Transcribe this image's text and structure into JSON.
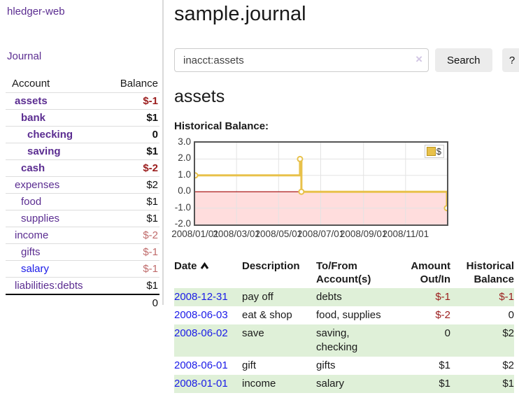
{
  "colors": {
    "link_purple": "#5b2d91",
    "link_blue": "#1a1ae8",
    "negative_strong": "#9b1d1d",
    "negative_soft": "#bf6a6a",
    "row_stripe_green": "#dff0d8",
    "chart_line": "#e8c14a",
    "chart_negative_region": "#ffdddd",
    "chart_zero_line": "#a00000",
    "chart_grid": "#e3e3e3"
  },
  "sidebar": {
    "app_title": "hledger-web",
    "journal_link": "Journal",
    "accounts": {
      "headers": {
        "account": "Account",
        "balance": "Balance"
      },
      "rows": [
        {
          "name": "assets",
          "balance": "$-1",
          "indent": 0,
          "bold": true,
          "link_color": "purple",
          "balance_color": "neg-strong"
        },
        {
          "name": "bank",
          "balance": "$1",
          "indent": 1,
          "bold": true,
          "link_color": "purple",
          "balance_color": "dark"
        },
        {
          "name": "checking",
          "balance": "0",
          "indent": 2,
          "bold": true,
          "link_color": "purple",
          "balance_color": "dark"
        },
        {
          "name": "saving",
          "balance": "$1",
          "indent": 2,
          "bold": true,
          "link_color": "purple",
          "balance_color": "dark"
        },
        {
          "name": "cash",
          "balance": "$-2",
          "indent": 1,
          "bold": true,
          "link_color": "purple",
          "balance_color": "neg-strong"
        },
        {
          "name": "expenses",
          "balance": "$2",
          "indent": 0,
          "bold": false,
          "link_color": "purple",
          "balance_color": "dark"
        },
        {
          "name": "food",
          "balance": "$1",
          "indent": 1,
          "bold": false,
          "link_color": "purple",
          "balance_color": "dark"
        },
        {
          "name": "supplies",
          "balance": "$1",
          "indent": 1,
          "bold": false,
          "link_color": "purple",
          "balance_color": "dark"
        },
        {
          "name": "income",
          "balance": "$-2",
          "indent": 0,
          "bold": false,
          "link_color": "purple",
          "balance_color": "neg-soft"
        },
        {
          "name": "gifts",
          "balance": "$-1",
          "indent": 1,
          "bold": false,
          "link_color": "purple",
          "balance_color": "neg-soft"
        },
        {
          "name": "salary",
          "balance": "$-1",
          "indent": 1,
          "bold": false,
          "link_color": "blue",
          "balance_color": "neg-soft"
        },
        {
          "name": "liabilities:debts",
          "balance": "$1",
          "indent": 0,
          "bold": false,
          "link_color": "purple",
          "balance_color": "dark"
        }
      ],
      "total": "0"
    }
  },
  "main": {
    "title": "sample.journal",
    "search": {
      "value": "inacct:assets",
      "clear_icon": "×",
      "search_button": "Search",
      "help_button": "?"
    },
    "heading": "assets",
    "chart_title": "Historical Balance:"
  },
  "chart_data": {
    "type": "line",
    "step": true,
    "title": "Historical Balance:",
    "legend": [
      {
        "name": "$",
        "color": "#e8c14a"
      }
    ],
    "legend_position": "top-right",
    "x_type": "date",
    "x_range_days": 365,
    "points": [
      {
        "date": "2008-01-01",
        "day": 0,
        "value": 1
      },
      {
        "date": "2008-06-01",
        "day": 152,
        "value": 2
      },
      {
        "date": "2008-06-03",
        "day": 154,
        "value": 0
      },
      {
        "date": "2008-12-31",
        "day": 365,
        "value": -1
      }
    ],
    "x_ticks": [
      {
        "label": "2008/01/01",
        "day": 0
      },
      {
        "label": "2008/03/01",
        "day": 60
      },
      {
        "label": "2008/05/01",
        "day": 121
      },
      {
        "label": "2008/07/01",
        "day": 182
      },
      {
        "label": "2008/09/01",
        "day": 244
      },
      {
        "label": "2008/11/01",
        "day": 305
      }
    ],
    "y_ticks": [
      {
        "label": "3.0",
        "value": 3
      },
      {
        "label": "2.0",
        "value": 2
      },
      {
        "label": "1.0",
        "value": 1
      },
      {
        "label": "0.0",
        "value": 0
      },
      {
        "label": "-1.0",
        "value": -1
      },
      {
        "label": "-2.0",
        "value": -2
      }
    ],
    "ylim": [
      -2,
      3
    ],
    "grid": true,
    "negative_region_shaded": true
  },
  "register": {
    "headers": {
      "date": "Date",
      "description": "Description",
      "accounts": "To/From Account(s)",
      "amount": "Amount Out/In",
      "balance": "Historical Balance"
    },
    "sort": {
      "column": "date",
      "direction": "ascending"
    },
    "rows": [
      {
        "date": "2008-12-31",
        "description": "pay off",
        "accounts": "debts",
        "amount": "$-1",
        "amount_negative": true,
        "balance": "$-1",
        "balance_negative": true
      },
      {
        "date": "2008-06-03",
        "description": "eat & shop",
        "accounts": "food, supplies",
        "amount": "$-2",
        "amount_negative": true,
        "balance": "0",
        "balance_negative": false
      },
      {
        "date": "2008-06-02",
        "description": "save",
        "accounts": "saving, checking",
        "amount": "0",
        "amount_negative": false,
        "balance": "$2",
        "balance_negative": false
      },
      {
        "date": "2008-06-01",
        "description": "gift",
        "accounts": "gifts",
        "amount": "$1",
        "amount_negative": false,
        "balance": "$2",
        "balance_negative": false
      },
      {
        "date": "2008-01-01",
        "description": "income",
        "accounts": "salary",
        "amount": "$1",
        "amount_negative": false,
        "balance": "$1",
        "balance_negative": false
      }
    ]
  }
}
